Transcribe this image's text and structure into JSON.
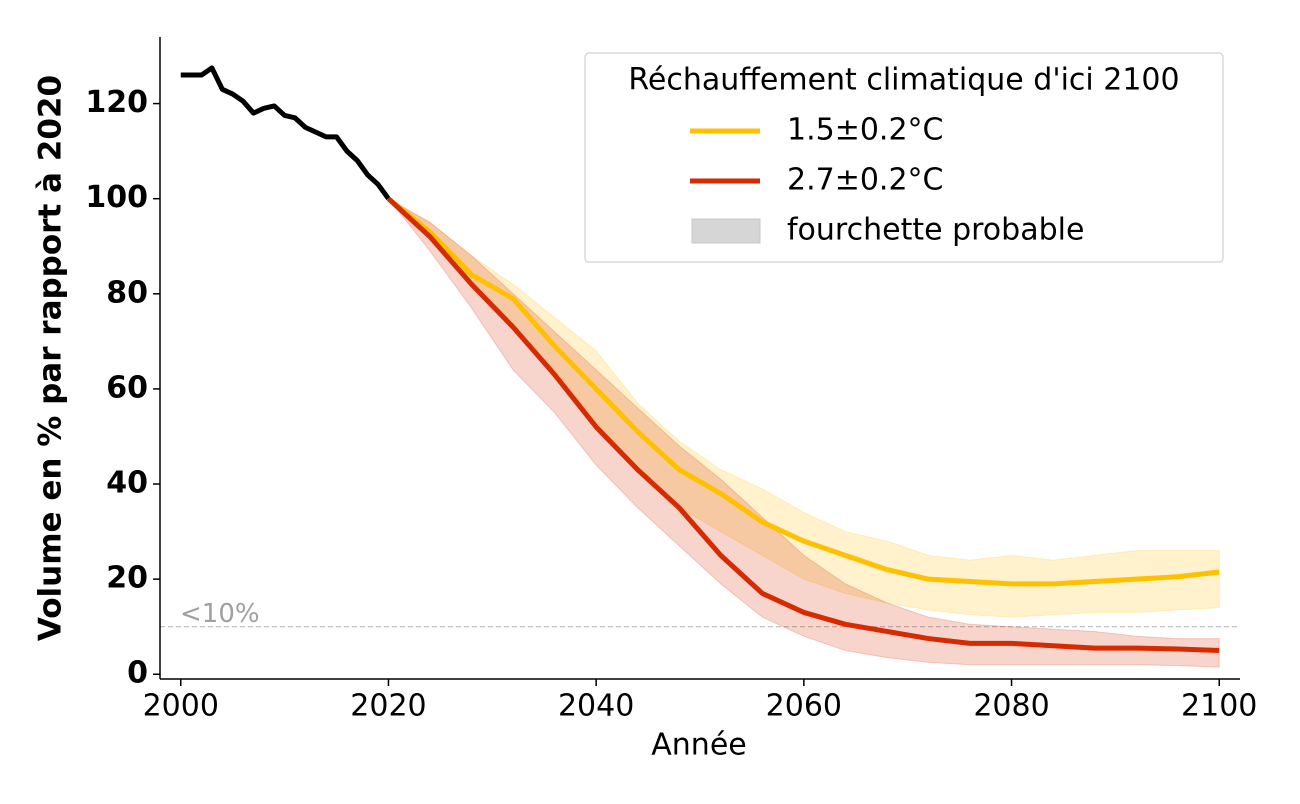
{
  "chart_data": {
    "type": "line",
    "xlabel": "Année",
    "ylabel": "Volume en % par rapport à 2020",
    "xlim": [
      1998,
      2102
    ],
    "ylim": [
      -1,
      134
    ],
    "xticks": [
      2000,
      2020,
      2040,
      2060,
      2080,
      2100
    ],
    "yticks": [
      0,
      20,
      40,
      60,
      80,
      100,
      120
    ],
    "series": [
      {
        "color": "#000000",
        "x": [
          2000,
          2001,
          2002,
          2003,
          2004,
          2005,
          2006,
          2007,
          2008,
          2009,
          2010,
          2011,
          2012,
          2013,
          2014,
          2015,
          2016,
          2017,
          2018,
          2019,
          2020
        ],
        "values": [
          126,
          126,
          126,
          127.5,
          123,
          122,
          120.5,
          118,
          119,
          119.5,
          117.5,
          117,
          115,
          114,
          113,
          113,
          110,
          108,
          105,
          103,
          100
        ]
      },
      {
        "name": "1.5±0.2°C",
        "color": "#ffc000",
        "x": [
          2020,
          2024,
          2028,
          2032,
          2036,
          2040,
          2044,
          2048,
          2052,
          2056,
          2060,
          2064,
          2068,
          2072,
          2076,
          2080,
          2084,
          2088,
          2092,
          2096,
          2100
        ],
        "values": [
          100,
          93,
          84,
          79,
          69,
          60,
          51,
          43,
          38,
          32,
          28,
          25,
          22,
          20,
          19.5,
          19,
          19,
          19.5,
          20,
          20.5,
          21.5
        ],
        "band_low": [
          100,
          92,
          82,
          73,
          64,
          53,
          43,
          35,
          30,
          25,
          20,
          17,
          15,
          13.5,
          12.5,
          12,
          12.5,
          13,
          13,
          13.5,
          14
        ],
        "band_high": [
          100,
          95,
          88,
          82,
          75,
          68,
          57,
          49,
          43,
          39,
          34,
          30,
          28,
          25,
          24,
          25,
          24,
          25,
          26,
          26,
          26
        ]
      },
      {
        "name": "2.7±0.2°C",
        "color": "#d62a00",
        "x": [
          2020,
          2024,
          2028,
          2032,
          2036,
          2040,
          2044,
          2048,
          2052,
          2056,
          2060,
          2064,
          2068,
          2072,
          2076,
          2080,
          2084,
          2088,
          2092,
          2096,
          2100
        ],
        "values": [
          100,
          92,
          82,
          73,
          63,
          52,
          43,
          35,
          25,
          17,
          13,
          10.5,
          9,
          7.5,
          6.5,
          6.5,
          6,
          5.5,
          5.5,
          5.3,
          5
        ],
        "band_low": [
          100,
          89,
          77,
          64,
          55,
          44,
          35,
          27,
          19,
          12,
          8,
          5,
          3.5,
          2.5,
          2,
          2,
          2,
          2,
          2,
          1.8,
          1.5
        ],
        "band_high": [
          100,
          95,
          88,
          80,
          72,
          64,
          56,
          48,
          41,
          33,
          25,
          19,
          15,
          12,
          10.5,
          10,
          9.5,
          9,
          8,
          7.5,
          7.5
        ]
      }
    ],
    "reference_line": {
      "value": 10,
      "label": "<10%",
      "color": "#bbbbbb"
    },
    "legend": {
      "title": "Réchauffement climatique d'ici 2100",
      "band_label": "fourchette probable",
      "band_color": "#d6d6d6",
      "location": "upper right"
    }
  }
}
